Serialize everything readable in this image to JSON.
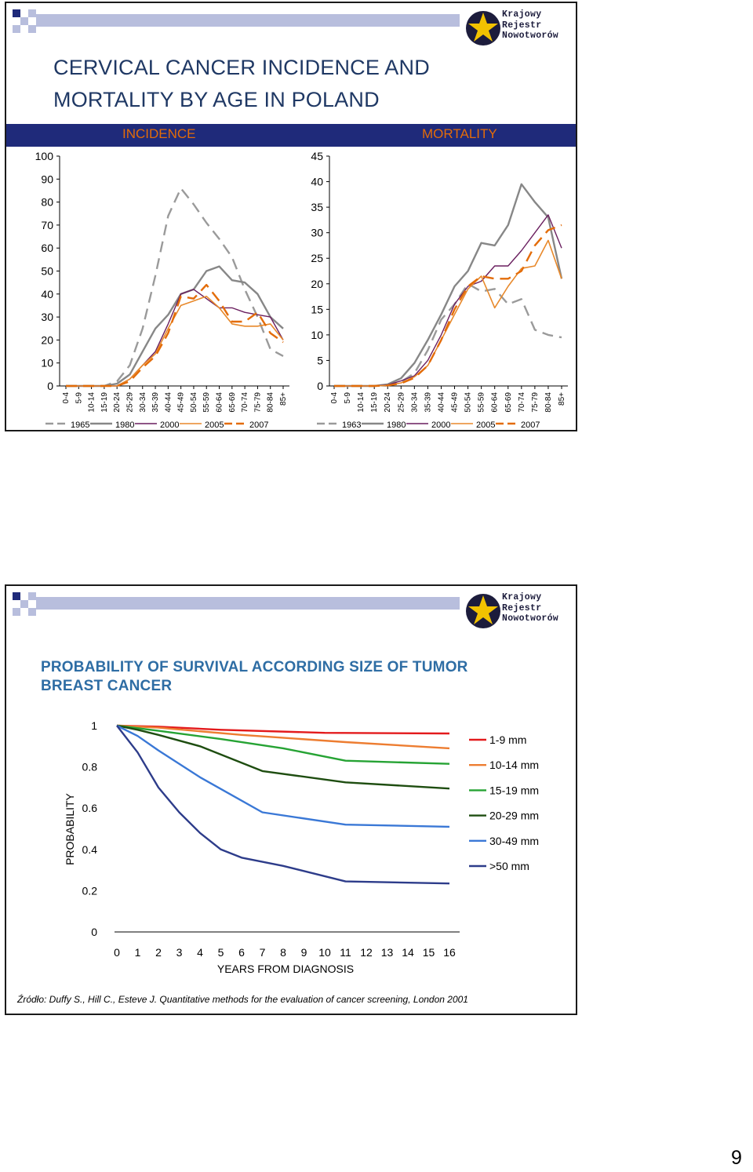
{
  "slide1": {
    "title_line1": "CERVICAL CANCER INCIDENCE AND",
    "title_line2": "MORTALITY BY AGE IN POLAND",
    "band_left": "INCIDENCE",
    "band_right": "MORTALITY",
    "logo_lines": [
      "Krajowy",
      "Rejestr",
      "Nowotworów"
    ]
  },
  "slide2": {
    "title_line1": "PROBABILITY OF SURVIVAL ACCORDING SIZE OF TUMOR",
    "title_line2": "BREAST CANCER",
    "source": "Źródło: Duffy S., Hill C., Esteve J. Quantitative methods for the evaluation of cancer screening, London 2001",
    "logo_lines": [
      "Krajowy",
      "Rejestr",
      "Nowotworów"
    ]
  },
  "page_number": "9",
  "colors": {
    "navy_band": "#1f2a7a",
    "band_text": "#e36c09",
    "title": "#1f3864",
    "title2": "#2e6da4"
  },
  "chart_data": [
    {
      "type": "line",
      "id": "incidence",
      "title": "INCIDENCE",
      "categories": [
        "0-4",
        "5-9",
        "10-14",
        "15-19",
        "20-24",
        "25-29",
        "30-34",
        "35-39",
        "40-44",
        "45-49",
        "50-54",
        "55-59",
        "60-64",
        "65-69",
        "70-74",
        "75-79",
        "80-84",
        "85+"
      ],
      "ylim": [
        0,
        100
      ],
      "yticks": [
        0,
        10,
        20,
        30,
        40,
        50,
        60,
        70,
        80,
        90,
        100
      ],
      "legend_position": "bottom",
      "series": [
        {
          "name": "1965",
          "color": "#9a9a9a",
          "dash": true,
          "width": 2.4,
          "values": [
            0,
            0,
            0,
            0,
            2,
            9,
            25,
            48,
            74,
            86,
            79,
            71,
            64,
            56,
            42,
            30,
            16,
            13
          ]
        },
        {
          "name": "1980",
          "color": "#878787",
          "dash": false,
          "width": 2.4,
          "values": [
            0,
            0,
            0,
            0,
            1,
            5,
            15,
            25,
            31,
            40,
            42,
            50,
            52,
            46,
            45,
            40,
            30,
            25
          ]
        },
        {
          "name": "2000",
          "color": "#6a1f5f",
          "dash": false,
          "width": 1.4,
          "values": [
            0,
            0,
            0,
            0,
            0,
            3,
            9,
            15,
            27,
            40,
            42,
            38,
            34,
            34,
            32,
            31,
            30,
            20
          ]
        },
        {
          "name": "2005",
          "color": "#e8892b",
          "dash": false,
          "width": 1.6,
          "values": [
            0,
            0,
            0,
            0,
            0,
            3,
            9,
            14,
            25,
            35,
            37,
            39,
            34,
            27,
            26,
            26,
            27,
            20
          ]
        },
        {
          "name": "2007",
          "color": "#e36c09",
          "dash": true,
          "width": 2.4,
          "values": [
            0,
            0,
            0,
            0,
            0,
            2,
            8,
            13,
            23,
            39,
            38,
            44,
            37,
            28,
            28,
            32,
            23,
            19
          ]
        }
      ]
    },
    {
      "type": "line",
      "id": "mortality",
      "title": "MORTALITY",
      "categories": [
        "0-4",
        "5-9",
        "10-14",
        "15-19",
        "20-24",
        "25-29",
        "30-34",
        "35-39",
        "40-44",
        "45-49",
        "50-54",
        "55-59",
        "60-64",
        "65-69",
        "70-74",
        "75-79",
        "80-84",
        "85+"
      ],
      "ylim": [
        0,
        45
      ],
      "yticks": [
        0,
        5,
        10,
        15,
        20,
        25,
        30,
        35,
        40,
        45
      ],
      "legend_position": "bottom",
      "series": [
        {
          "name": "1963",
          "color": "#9a9a9a",
          "dash": true,
          "width": 2.4,
          "values": [
            0,
            0,
            0,
            0,
            0.1,
            0.8,
            2.5,
            7,
            13,
            16,
            20,
            18.5,
            19,
            16,
            17,
            11,
            10,
            9.5
          ]
        },
        {
          "name": "1980",
          "color": "#878787",
          "dash": false,
          "width": 2.4,
          "values": [
            0,
            0,
            0,
            0,
            0.3,
            1.5,
            4.5,
            9,
            14,
            19.5,
            22.5,
            28,
            27.5,
            31.5,
            39.5,
            36,
            33,
            21
          ]
        },
        {
          "name": "2000",
          "color": "#6a1f5f",
          "dash": false,
          "width": 1.4,
          "values": [
            0,
            0,
            0,
            0,
            0.2,
            1.0,
            2.0,
            5,
            10,
            16,
            19.5,
            20.5,
            23.5,
            23.5,
            26.5,
            30,
            33.5,
            27
          ]
        },
        {
          "name": "2005",
          "color": "#e8892b",
          "dash": false,
          "width": 1.6,
          "values": [
            0,
            0,
            0,
            0,
            0.1,
            0.6,
            1.8,
            4,
            9,
            14,
            19,
            21.5,
            15.3,
            19.5,
            23,
            23.5,
            28.5,
            21
          ]
        },
        {
          "name": "2007",
          "color": "#e36c09",
          "dash": true,
          "width": 2.4,
          "values": [
            0,
            0,
            0,
            0,
            0.1,
            0.5,
            1.6,
            4,
            9,
            15,
            19.5,
            21.5,
            21,
            21,
            22.5,
            27.5,
            30.5,
            31.5
          ]
        }
      ]
    },
    {
      "type": "line",
      "id": "survival",
      "xlabel": "YEARS FROM DIAGNOSIS",
      "ylabel": "PROBABILITY",
      "x": [
        0,
        1,
        2,
        3,
        4,
        5,
        6,
        7,
        8,
        9,
        10,
        11,
        12,
        13,
        14,
        15,
        16
      ],
      "xticks": [
        0,
        1,
        2,
        3,
        4,
        5,
        6,
        7,
        8,
        9,
        10,
        11,
        12,
        13,
        14,
        15,
        16
      ],
      "yticks": [
        "0",
        "0.2",
        "0.4",
        "0.6",
        "0.8",
        "1"
      ],
      "ylim": [
        0,
        1
      ],
      "legend_position": "right",
      "series": [
        {
          "name": "1-9 mm",
          "color": "#e31a1c",
          "x": [
            0,
            2,
            5,
            10,
            16
          ],
          "values": [
            1,
            0.995,
            0.98,
            0.965,
            0.962
          ]
        },
        {
          "name": "10-14 mm",
          "color": "#ed7d31",
          "x": [
            0,
            2,
            6,
            11,
            16
          ],
          "values": [
            1,
            0.99,
            0.955,
            0.92,
            0.89
          ]
        },
        {
          "name": "15-19 mm",
          "color": "#26a334",
          "x": [
            0,
            2,
            5,
            8,
            11,
            16
          ],
          "values": [
            1,
            0.975,
            0.935,
            0.89,
            0.83,
            0.815
          ]
        },
        {
          "name": "20-29 mm",
          "color": "#1e4d10",
          "x": [
            0,
            1,
            2,
            4,
            7,
            11,
            16
          ],
          "values": [
            1,
            0.98,
            0.955,
            0.9,
            0.78,
            0.725,
            0.695
          ]
        },
        {
          "name": "30-49 mm",
          "color": "#3a78d6",
          "x": [
            0,
            1,
            2,
            4,
            7,
            11,
            16
          ],
          "values": [
            1,
            0.95,
            0.88,
            0.75,
            0.58,
            0.52,
            0.51
          ]
        },
        {
          "name": ">50 mm",
          "color": "#2d3c8a",
          "x": [
            0,
            1,
            2,
            3,
            4,
            5,
            6,
            8,
            11,
            16
          ],
          "values": [
            1,
            0.87,
            0.7,
            0.58,
            0.48,
            0.4,
            0.36,
            0.32,
            0.245,
            0.235
          ]
        }
      ]
    }
  ]
}
